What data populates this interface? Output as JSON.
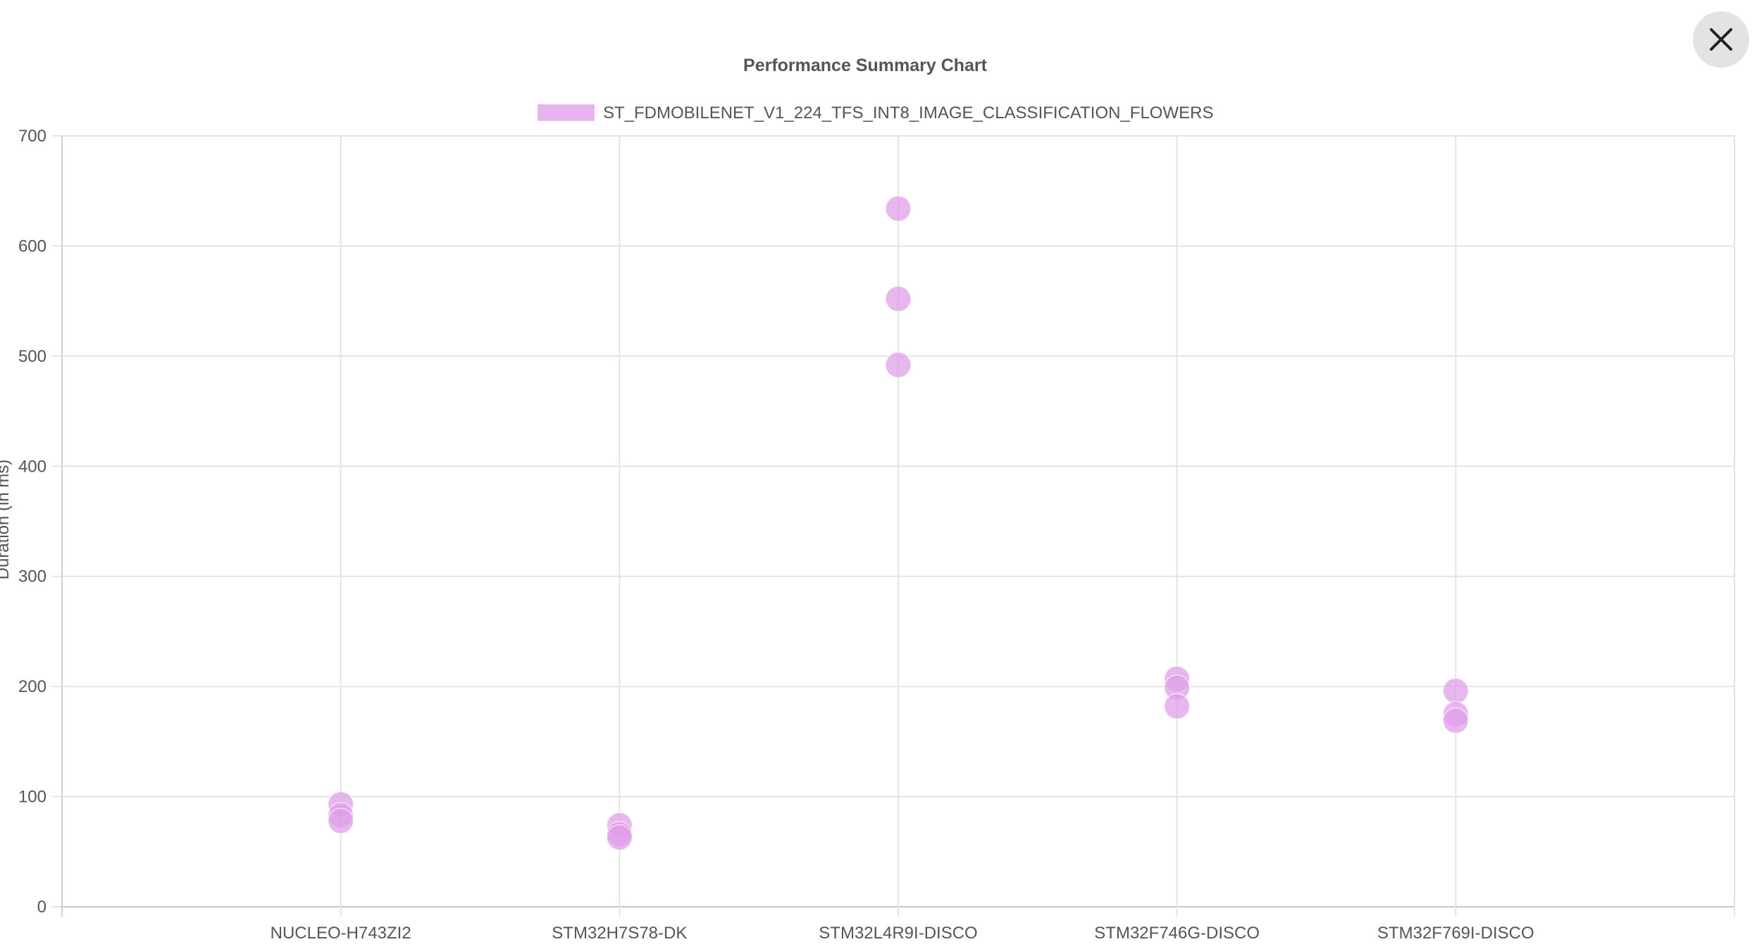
{
  "close_button": {
    "icon": "close-icon"
  },
  "chart_data": {
    "type": "scatter",
    "title": "Performance Summary Chart",
    "xlabel": "",
    "ylabel": "Duration (in ms)",
    "categories": [
      "NUCLEO-H743ZI2",
      "STM32H7S78-DK",
      "STM32L4R9I-DISCO",
      "STM32F746G-DISCO",
      "STM32F769I-DISCO"
    ],
    "ylim": [
      0,
      700
    ],
    "yticks": [
      0,
      100,
      200,
      300,
      400,
      500,
      600,
      700
    ],
    "grid": true,
    "legend_position": "top",
    "series": [
      {
        "name": "ST_FDMOBILENET_V1_224_TFS_INT8_IMAGE_CLASSIFICATION_FLOWERS",
        "color": "#df9fe8",
        "points": [
          {
            "x": "NUCLEO-H743ZI2",
            "y": 93
          },
          {
            "x": "NUCLEO-H743ZI2",
            "y": 83
          },
          {
            "x": "NUCLEO-H743ZI2",
            "y": 78
          },
          {
            "x": "STM32H7S78-DK",
            "y": 74
          },
          {
            "x": "STM32H7S78-DK",
            "y": 66
          },
          {
            "x": "STM32H7S78-DK",
            "y": 63
          },
          {
            "x": "STM32L4R9I-DISCO",
            "y": 634
          },
          {
            "x": "STM32L4R9I-DISCO",
            "y": 552
          },
          {
            "x": "STM32L4R9I-DISCO",
            "y": 492
          },
          {
            "x": "STM32F746G-DISCO",
            "y": 207
          },
          {
            "x": "STM32F746G-DISCO",
            "y": 199
          },
          {
            "x": "STM32F746G-DISCO",
            "y": 182
          },
          {
            "x": "STM32F769I-DISCO",
            "y": 196
          },
          {
            "x": "STM32F769I-DISCO",
            "y": 175
          },
          {
            "x": "STM32F769I-DISCO",
            "y": 169
          }
        ]
      }
    ]
  }
}
